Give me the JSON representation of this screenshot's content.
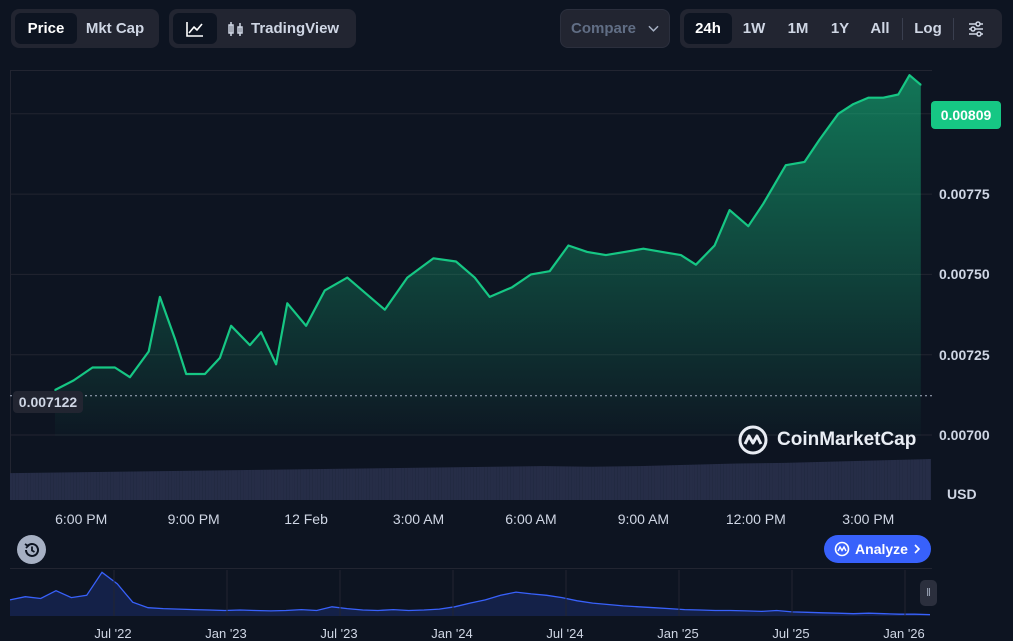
{
  "toolbar": {
    "price_label": "Price",
    "mktcap_label": "Mkt Cap",
    "tradingview_label": "TradingView",
    "compare_label": "Compare",
    "ranges": [
      "24h",
      "1W",
      "1M",
      "1Y",
      "All"
    ],
    "log_label": "Log",
    "icons": [
      "line-chart-icon",
      "candlestick-icon",
      "chevron-down-icon",
      "settings-sliders-icon"
    ]
  },
  "badges": {
    "current_price": "0.00809",
    "open_price": "0.007122",
    "currency": "USD"
  },
  "watermark": "CoinMarketCap",
  "analyze_label": "Analyze",
  "colors": {
    "background": "#0d1421",
    "line": "#16c784",
    "navigator": "#3861fb",
    "volume": "#262d47"
  },
  "chart_data": {
    "type": "area",
    "currency": "USD",
    "ylim": [
      0.007,
      0.00813
    ],
    "y_ticks": [
      "0.00700",
      "0.00725",
      "0.00750",
      "0.00775",
      "0.00800"
    ],
    "x_ticks": [
      "6:00 PM",
      "9:00 PM",
      "12 Feb",
      "3:00 AM",
      "6:00 AM",
      "9:00 AM",
      "12:00 PM",
      "3:00 PM"
    ],
    "xlim_hours": [
      16.1,
      40.7
    ],
    "open_line": 0.007122,
    "last_price": 0.00809,
    "series": [
      {
        "x": [
          17.3,
          17.8,
          18.3,
          18.9,
          19.3,
          19.8,
          20.1,
          20.5,
          20.8,
          21.3,
          21.7,
          22.0,
          22.5,
          22.8,
          23.2,
          23.5,
          24.0,
          24.5,
          25.1,
          25.5,
          25.9,
          26.1,
          26.7,
          27.4,
          28.0,
          28.5,
          28.9,
          29.5,
          30.0,
          30.5,
          31.0,
          31.5,
          32.0,
          32.5,
          33.0,
          33.5,
          34.0,
          34.4,
          34.9,
          35.3,
          35.8,
          36.2,
          36.8,
          37.3,
          37.7,
          38.2,
          38.6,
          39.0,
          39.4,
          39.8,
          40.1,
          40.4
        ],
        "values": [
          0.00714,
          0.00717,
          0.00721,
          0.00721,
          0.00718,
          0.00726,
          0.00743,
          0.0073,
          0.00719,
          0.00719,
          0.00724,
          0.00734,
          0.00728,
          0.00732,
          0.00722,
          0.00741,
          0.00734,
          0.00745,
          0.00749,
          0.00745,
          0.00741,
          0.00739,
          0.00749,
          0.00755,
          0.00754,
          0.00749,
          0.00743,
          0.00746,
          0.0075,
          0.00751,
          0.00759,
          0.00757,
          0.00756,
          0.00757,
          0.00758,
          0.00757,
          0.00756,
          0.00753,
          0.00759,
          0.0077,
          0.00765,
          0.00772,
          0.00784,
          0.00785,
          0.00792,
          0.008,
          0.00803,
          0.00805,
          0.00805,
          0.00806,
          0.00812,
          0.00809
        ]
      }
    ],
    "volume_levels": [
      0.42,
      0.43,
      0.44,
      0.45,
      0.46,
      0.47,
      0.48,
      0.49,
      0.5,
      0.51,
      0.52,
      0.53,
      0.52,
      0.53,
      0.55,
      0.57,
      0.58,
      0.6,
      0.62,
      0.64
    ],
    "navigator": {
      "x_ticks": [
        "Jul '22",
        "Jan '23",
        "Jul '23",
        "Jan '24",
        "Jul '24",
        "Jan '25",
        "Jul '25",
        "Jan '26"
      ],
      "values": [
        0.35,
        0.42,
        0.38,
        0.55,
        0.4,
        0.45,
        0.95,
        0.7,
        0.3,
        0.18,
        0.16,
        0.15,
        0.14,
        0.13,
        0.12,
        0.13,
        0.12,
        0.11,
        0.12,
        0.14,
        0.12,
        0.2,
        0.16,
        0.13,
        0.12,
        0.14,
        0.12,
        0.13,
        0.15,
        0.2,
        0.28,
        0.35,
        0.45,
        0.52,
        0.48,
        0.45,
        0.4,
        0.33,
        0.28,
        0.25,
        0.22,
        0.2,
        0.18,
        0.16,
        0.14,
        0.13,
        0.12,
        0.12,
        0.11,
        0.1,
        0.12,
        0.09,
        0.08,
        0.07,
        0.06,
        0.05,
        0.06,
        0.05,
        0.04,
        0.04,
        0.03
      ]
    }
  }
}
